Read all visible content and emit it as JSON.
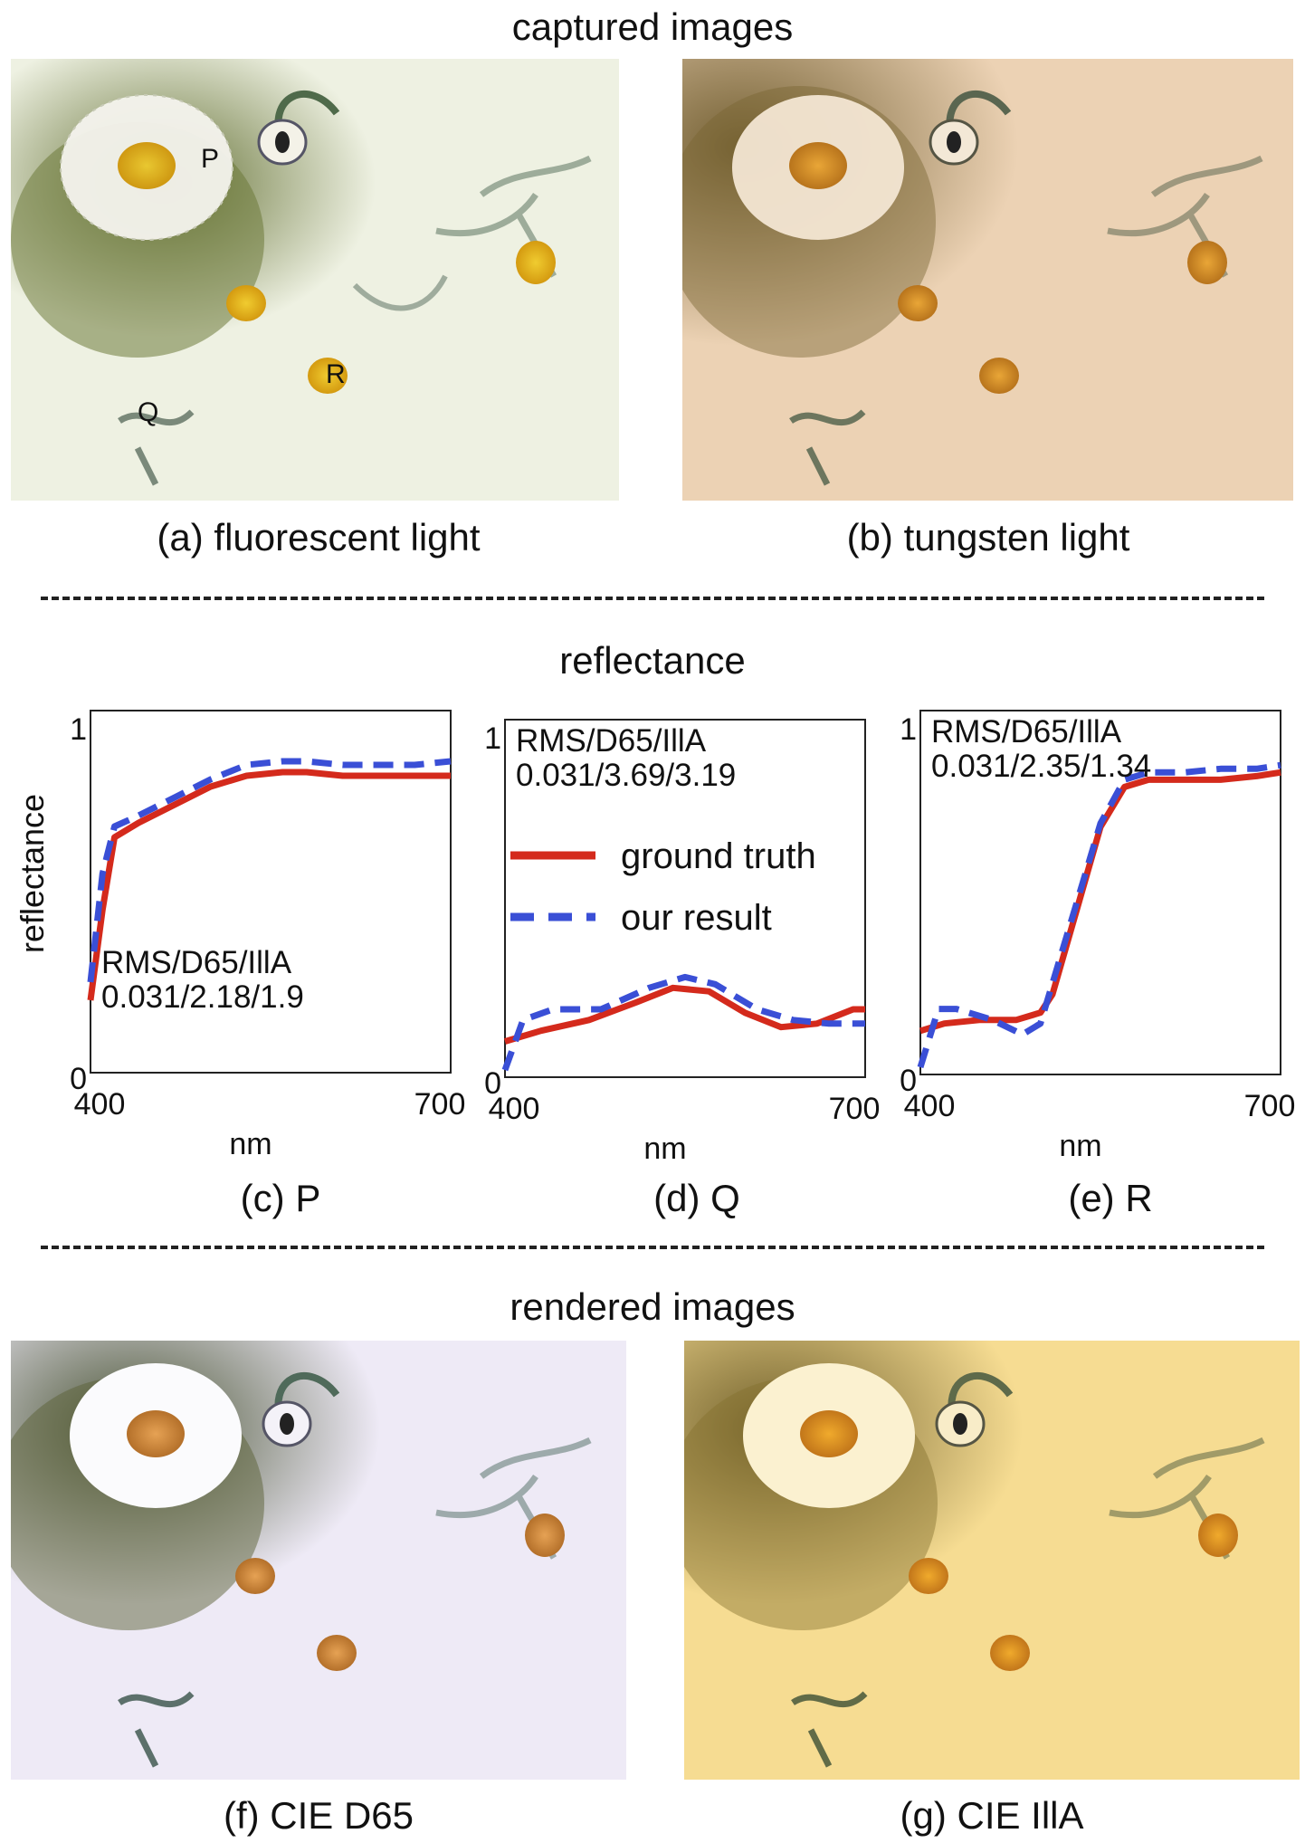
{
  "headings": {
    "captured": "captured images",
    "reflectance": "reflectance",
    "rendered": "rendered images"
  },
  "captions": {
    "a": "(a) fluorescent light",
    "b": "(b) tungsten light",
    "c": "(c) P",
    "d": "(d) Q",
    "e": "(e) R",
    "f": "(f) CIE D65",
    "g": "(g) CIE IllA"
  },
  "point_labels": {
    "p": "P",
    "q": "Q",
    "r": "R"
  },
  "photo_tints": {
    "fluorescent": "#eef1e2",
    "tungsten": "#ecd2b4",
    "d65": "#eeeaf6",
    "illA": "#f6dc92"
  },
  "chart_data": [
    {
      "type": "line",
      "panel": "P",
      "ylabel": "reflectance",
      "xlabel": "nm",
      "xlim": [
        400,
        700
      ],
      "ylim": [
        0,
        1
      ],
      "xticks": [
        "400",
        "700"
      ],
      "yticks": [
        "0",
        "1"
      ],
      "metrics_title": "RMS/D65/IllA",
      "metrics_values": "0.031/2.18/1.9",
      "metrics_position": "bottom-left",
      "series": [
        {
          "name": "ground truth",
          "color": "#d42a1c",
          "dash": false,
          "x": [
            400,
            410,
            420,
            440,
            470,
            500,
            530,
            560,
            580,
            610,
            640,
            670,
            700
          ],
          "y": [
            0.2,
            0.45,
            0.65,
            0.69,
            0.74,
            0.79,
            0.82,
            0.83,
            0.83,
            0.82,
            0.82,
            0.82,
            0.82
          ]
        },
        {
          "name": "our result",
          "color": "#3a4fd6",
          "dash": true,
          "x": [
            400,
            410,
            420,
            440,
            470,
            500,
            530,
            560,
            580,
            610,
            640,
            670,
            700
          ],
          "y": [
            0.25,
            0.55,
            0.68,
            0.71,
            0.76,
            0.81,
            0.85,
            0.86,
            0.86,
            0.85,
            0.85,
            0.85,
            0.86
          ]
        }
      ]
    },
    {
      "type": "line",
      "panel": "Q",
      "xlabel": "nm",
      "xlim": [
        400,
        700
      ],
      "ylim": [
        0,
        1
      ],
      "xticks": [
        "400",
        "700"
      ],
      "yticks": [
        "0",
        "1"
      ],
      "metrics_title": "RMS/D65/IllA",
      "metrics_values": "0.031/3.69/3.19",
      "metrics_position": "top-left",
      "legend": "center-left",
      "series": [
        {
          "name": "ground truth",
          "color": "#d42a1c",
          "dash": false,
          "x": [
            400,
            430,
            470,
            510,
            540,
            570,
            600,
            630,
            660,
            690,
            700
          ],
          "y": [
            0.1,
            0.13,
            0.16,
            0.21,
            0.25,
            0.24,
            0.18,
            0.14,
            0.15,
            0.19,
            0.19
          ]
        },
        {
          "name": "our result",
          "color": "#3a4fd6",
          "dash": true,
          "x": [
            400,
            415,
            440,
            480,
            520,
            550,
            575,
            610,
            640,
            670,
            700
          ],
          "y": [
            0.02,
            0.16,
            0.19,
            0.19,
            0.25,
            0.28,
            0.26,
            0.19,
            0.16,
            0.15,
            0.15
          ]
        }
      ]
    },
    {
      "type": "line",
      "panel": "R",
      "xlabel": "nm",
      "xlim": [
        400,
        700
      ],
      "ylim": [
        0,
        1
      ],
      "xticks": [
        "400",
        "700"
      ],
      "yticks": [
        "0",
        "1"
      ],
      "metrics_title": "RMS/D65/IllA",
      "metrics_values": "0.031/2.35/1.34",
      "metrics_position": "top-left",
      "series": [
        {
          "name": "ground truth",
          "color": "#d42a1c",
          "dash": false,
          "x": [
            400,
            420,
            450,
            480,
            500,
            510,
            530,
            550,
            570,
            590,
            620,
            650,
            680,
            700
          ],
          "y": [
            0.12,
            0.14,
            0.15,
            0.15,
            0.17,
            0.22,
            0.45,
            0.68,
            0.79,
            0.81,
            0.81,
            0.81,
            0.82,
            0.83
          ]
        },
        {
          "name": "our result",
          "color": "#3a4fd6",
          "dash": true,
          "x": [
            400,
            415,
            430,
            460,
            485,
            500,
            510,
            530,
            550,
            570,
            590,
            620,
            650,
            680,
            700
          ],
          "y": [
            0.02,
            0.18,
            0.18,
            0.15,
            0.11,
            0.14,
            0.25,
            0.47,
            0.69,
            0.81,
            0.83,
            0.83,
            0.84,
            0.84,
            0.85
          ]
        }
      ]
    }
  ]
}
